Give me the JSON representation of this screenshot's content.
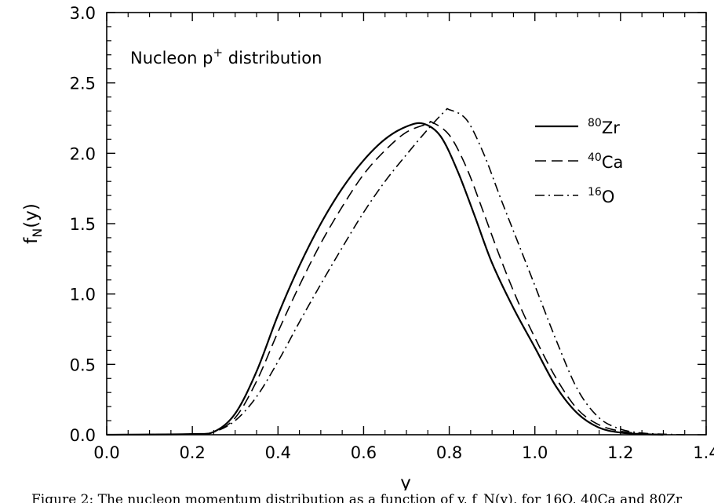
{
  "chart_data": {
    "type": "line",
    "title": "",
    "annotation": {
      "main": "Nucleon p",
      "sup": "+",
      "tail": " distribution"
    },
    "xlabel": "y",
    "ylabel": {
      "main": "f",
      "sub": "N",
      "tail": "(y)"
    },
    "xlim": [
      0.0,
      1.4
    ],
    "ylim": [
      0.0,
      3.0
    ],
    "xticks": [
      "0.0",
      "0.2",
      "0.4",
      "0.6",
      "0.8",
      "1.0",
      "1.2",
      "1.4"
    ],
    "yticks": [
      "0.0",
      "0.5",
      "1.0",
      "1.5",
      "2.0",
      "2.5",
      "3.0"
    ],
    "grid": false,
    "legend_position": "top-right",
    "series": [
      {
        "name": "80Zr",
        "legend": {
          "sup": "80",
          "text": "Zr"
        },
        "style": "solid",
        "x": [
          0.0,
          0.2,
          0.25,
          0.3,
          0.35,
          0.4,
          0.45,
          0.5,
          0.55,
          0.6,
          0.65,
          0.7,
          0.74,
          0.78,
          0.82,
          0.86,
          0.9,
          0.95,
          1.0,
          1.05,
          1.1,
          1.15,
          1.2,
          1.25,
          1.3
        ],
        "y": [
          0.0,
          0.005,
          0.02,
          0.15,
          0.45,
          0.85,
          1.2,
          1.5,
          1.75,
          1.95,
          2.1,
          2.19,
          2.21,
          2.12,
          1.87,
          1.55,
          1.22,
          0.9,
          0.62,
          0.34,
          0.15,
          0.05,
          0.015,
          0.005,
          0.0
        ]
      },
      {
        "name": "40Ca",
        "legend": {
          "sup": "40",
          "text": "Ca"
        },
        "style": "dashed",
        "x": [
          0.0,
          0.2,
          0.25,
          0.3,
          0.35,
          0.4,
          0.45,
          0.5,
          0.55,
          0.6,
          0.65,
          0.7,
          0.75,
          0.76,
          0.8,
          0.84,
          0.88,
          0.92,
          0.96,
          1.0,
          1.05,
          1.1,
          1.15,
          1.2,
          1.25,
          1.3
        ],
        "y": [
          0.0,
          0.005,
          0.02,
          0.12,
          0.38,
          0.73,
          1.06,
          1.36,
          1.62,
          1.85,
          2.02,
          2.15,
          2.21,
          2.22,
          2.13,
          1.9,
          1.58,
          1.25,
          0.95,
          0.69,
          0.4,
          0.18,
          0.07,
          0.025,
          0.008,
          0.0
        ]
      },
      {
        "name": "16O",
        "legend": {
          "sup": "16",
          "text": "O"
        },
        "style": "dash-dot",
        "x": [
          0.0,
          0.2,
          0.25,
          0.3,
          0.35,
          0.4,
          0.45,
          0.5,
          0.55,
          0.6,
          0.65,
          0.7,
          0.75,
          0.79,
          0.8,
          0.84,
          0.88,
          0.92,
          0.96,
          1.0,
          1.05,
          1.1,
          1.15,
          1.2,
          1.25,
          1.3,
          1.35
        ],
        "y": [
          0.0,
          0.005,
          0.02,
          0.1,
          0.27,
          0.52,
          0.8,
          1.07,
          1.33,
          1.58,
          1.8,
          1.99,
          2.17,
          2.3,
          2.31,
          2.24,
          2.0,
          1.68,
          1.37,
          1.06,
          0.67,
          0.32,
          0.12,
          0.04,
          0.012,
          0.004,
          0.0
        ]
      }
    ]
  },
  "caption": "Figure 2: The nucleon momentum distribution as a function of y, f_N(y), for 16O, 40Ca and 80Zr"
}
